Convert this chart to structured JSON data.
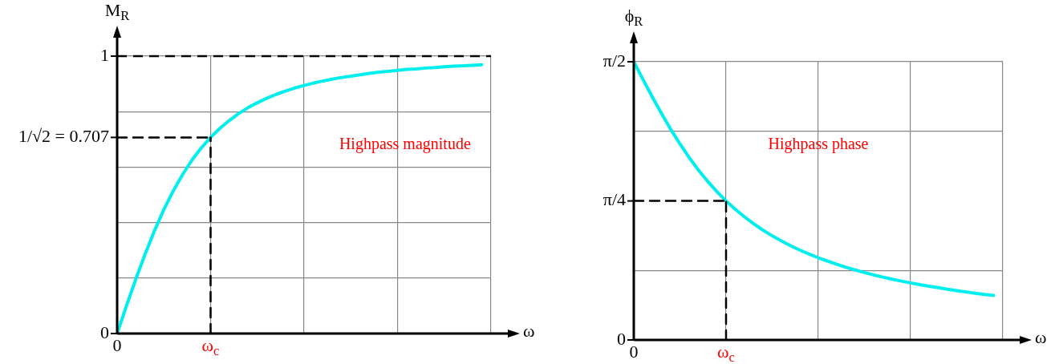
{
  "chart_data": [
    {
      "type": "line",
      "xlabel": "ω",
      "ylabel": "M$_{R}$",
      "ylim": [
        0,
        1
      ],
      "categories": [
        "0",
        null,
        null,
        null,
        null,
        null,
        null,
        null,
        null,
        null,
        "ω$_{c}$",
        null,
        null,
        null,
        null,
        null,
        null,
        null,
        null,
        null,
        null,
        null,
        null,
        null,
        null,
        null,
        null,
        null,
        null,
        null,
        null,
        null,
        null,
        null,
        null,
        null,
        null,
        null,
        null,
        null,
        null
      ],
      "yticks": [
        {
          "value": 0,
          "label": "0"
        },
        {
          "value": 0.2,
          "label": null
        },
        {
          "value": 0.4,
          "label": null
        },
        {
          "value": 0.6,
          "label": null
        },
        {
          "value": 0.707,
          "label": "1/√2 = 0.707"
        },
        {
          "value": 0.8,
          "label": null
        },
        {
          "value": 1,
          "label": "1"
        }
      ],
      "grid": true,
      "marker": "none",
      "annotations": [
        "Highpass magnitude"
      ],
      "ref_lines": [
        {
          "axis": "y",
          "value": 1,
          "color": "#000000",
          "line_style": "dashed"
        }
      ],
      "series": [
        {
          "color": "#00eeee",
          "line_style": "solid",
          "values": [
            0,
            0.1,
            0.196,
            0.287,
            0.371,
            0.447,
            0.514,
            0.573,
            0.625,
            0.669,
            0.707,
            0.74,
            0.768,
            0.793,
            0.814,
            0.832,
            0.848,
            0.862,
            0.874,
            0.885,
            0.894,
            0.903,
            0.91,
            0.917,
            0.923,
            0.928,
            0.933,
            0.938,
            0.942,
            0.945,
            0.949,
            0.952,
            0.954,
            0.957,
            0.959,
            0.962,
            0.964,
            0.965,
            0.967,
            0.969,
            null
          ]
        },
        {
          "color": "#000000",
          "line_style": "dashed",
          "x": [
            "0",
            "ω$_{c}$"
          ],
          "values": [
            0.707,
            0.707
          ]
        },
        {
          "color": "#000000",
          "line_style": "dashed",
          "x": [
            "ω$_{c}$",
            "ω$_{c}$"
          ],
          "values": [
            0,
            0.707
          ]
        }
      ]
    },
    {
      "type": "line",
      "xlabel": "ω",
      "ylabel": "ϕ$_{R}$",
      "ylim": [
        0,
        1.571
      ],
      "categories": [
        "0",
        null,
        null,
        null,
        null,
        null,
        null,
        null,
        null,
        null,
        "ω$_{c}$",
        null,
        null,
        null,
        null,
        null,
        null,
        null,
        null,
        null,
        null,
        null,
        null,
        null,
        null,
        null,
        null,
        null,
        null,
        null,
        null,
        null,
        null,
        null,
        null,
        null,
        null,
        null,
        null,
        null,
        null
      ],
      "yticks": [
        {
          "value": 0,
          "label": "0"
        },
        {
          "value": 0.393,
          "label": null
        },
        {
          "value": 0.785,
          "label": "π/4"
        },
        {
          "value": 1.178,
          "label": null
        },
        {
          "value": 1.571,
          "label": "π/2"
        }
      ],
      "grid": true,
      "marker": "none",
      "annotations": [
        "Highpass phase"
      ],
      "series": [
        {
          "color": "#00eeee",
          "line_style": "solid",
          "values": [
            1.571,
            1.471,
            1.373,
            1.279,
            1.19,
            1.107,
            1.03,
            0.96,
            0.896,
            0.838,
            0.785,
            0.738,
            0.695,
            0.656,
            0.62,
            0.588,
            0.559,
            0.532,
            0.507,
            0.485,
            0.464,
            0.445,
            0.427,
            0.41,
            0.395,
            0.381,
            0.367,
            0.355,
            0.343,
            0.332,
            0.322,
            0.312,
            0.303,
            0.295,
            0.286,
            0.278,
            0.271,
            0.264,
            0.257,
            0.251,
            null
          ]
        },
        {
          "color": "#000000",
          "line_style": "dashed",
          "x": [
            "0",
            "ω$_{c}$"
          ],
          "values": [
            0.785,
            0.785
          ]
        },
        {
          "color": "#000000",
          "line_style": "dashed",
          "x": [
            "ω$_{c}$",
            "ω$_{c}$"
          ],
          "values": [
            0,
            0.785
          ]
        }
      ]
    }
  ]
}
